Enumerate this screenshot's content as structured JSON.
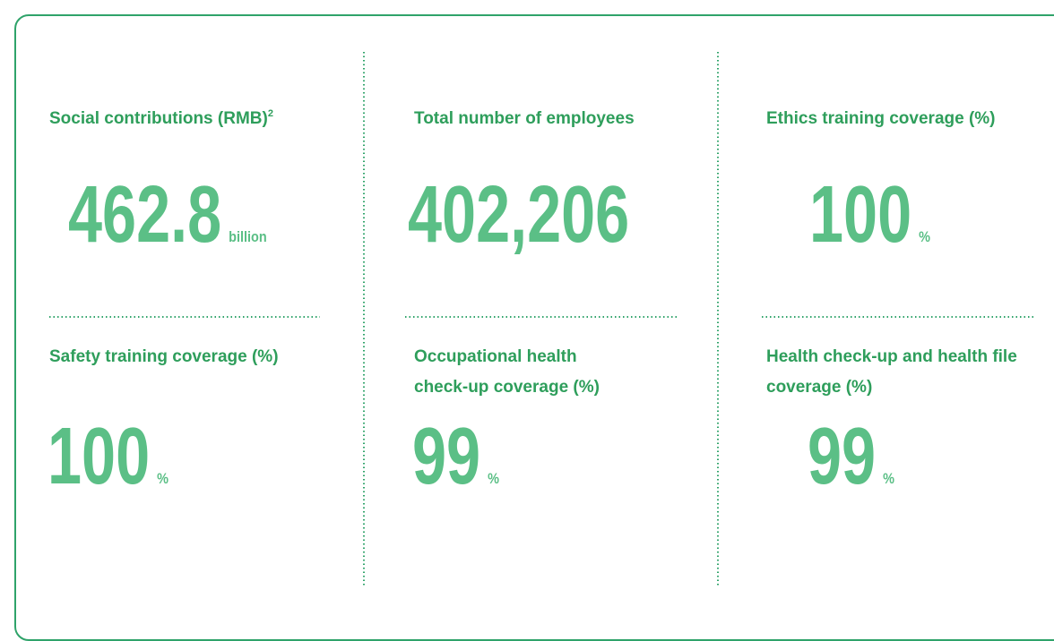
{
  "items": [
    {
      "label": "Social contributions (RMB)",
      "note": "2",
      "value": "462.8",
      "unit": "billion"
    },
    {
      "label": "Total number of employees",
      "value": "402,206"
    },
    {
      "label": "Ethics training coverage (%)",
      "value": "100",
      "unit": "%"
    },
    {
      "label": "Safety training coverage (%)",
      "value": "100",
      "unit": "%"
    },
    {
      "label": "Occupational health check-up coverage (%)",
      "value": "99",
      "unit": "%"
    },
    {
      "label": "Health check-up and health file coverage (%)",
      "value": "99",
      "unit": "%"
    }
  ]
}
